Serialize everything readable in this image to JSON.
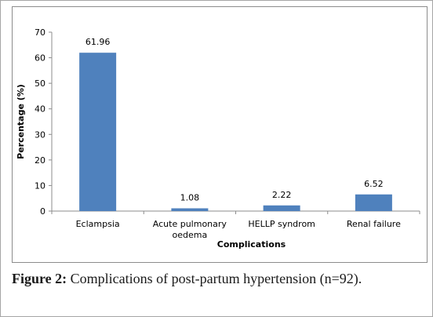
{
  "chart_data": {
    "type": "bar",
    "categories": [
      "Eclampsia",
      "Acute pulmonary oedema",
      "HELLP syndrom",
      "Renal failure"
    ],
    "category_lines": [
      [
        "Eclampsia"
      ],
      [
        "Acute pulmonary",
        "oedema"
      ],
      [
        "HELLP syndrom"
      ],
      [
        "Renal failure"
      ]
    ],
    "values": [
      61.96,
      1.08,
      2.22,
      6.52
    ],
    "value_labels": [
      "61.96",
      "1.08",
      "2.22",
      "6.52"
    ],
    "xlabel": "Complications",
    "ylabel": "Percentage (%)",
    "ylim": [
      0,
      70
    ],
    "yticks": [
      0,
      10,
      20,
      30,
      40,
      50,
      60,
      70
    ],
    "grid": false,
    "bar_color": "#4f81bd"
  },
  "caption": {
    "lead": "Figure 2:",
    "text": " Complications of post-partum hypertension (n=92)."
  }
}
